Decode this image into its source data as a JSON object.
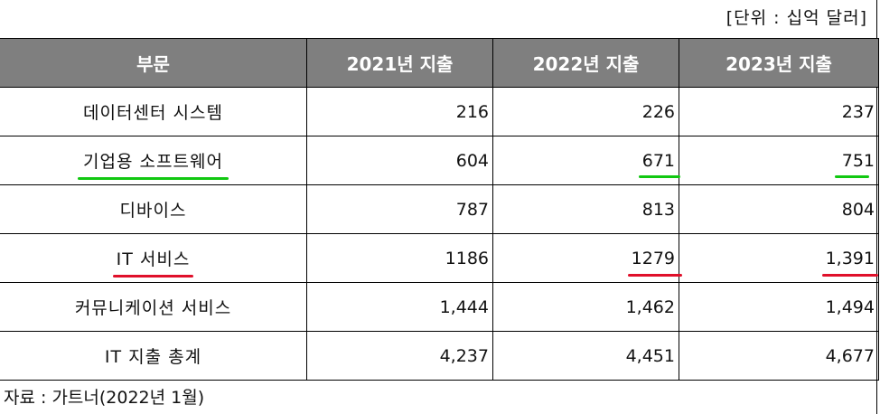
{
  "unit_note": "[단위 : 십억 달러]",
  "table": {
    "headers": [
      "부문",
      "2021년 지출",
      "2022년 지출",
      "2023년 지출"
    ],
    "rows": [
      {
        "segment": "데이터센터 시스템",
        "y2021": "216",
        "y2022": "226",
        "y2023": "237"
      },
      {
        "segment": "기업용 소프트웨어",
        "y2021": "604",
        "y2022": "671",
        "y2023": "751"
      },
      {
        "segment": "디바이스",
        "y2021": "787",
        "y2022": "813",
        "y2023": "804"
      },
      {
        "segment": "IT 서비스",
        "y2021": "1186",
        "y2022": "1279",
        "y2023": "1,391"
      },
      {
        "segment": "커뮤니케이션 서비스",
        "y2021": "1,444",
        "y2022": "1,462",
        "y2023": "1,494"
      },
      {
        "segment": "IT 지출 총계",
        "y2021": "4,237",
        "y2022": "4,451",
        "y2023": "4,677"
      }
    ]
  },
  "highlights": {
    "green_color": "#11c811",
    "red_color": "#e0102a"
  },
  "source_note": "자료 : 가트너(2022년 1월)"
}
